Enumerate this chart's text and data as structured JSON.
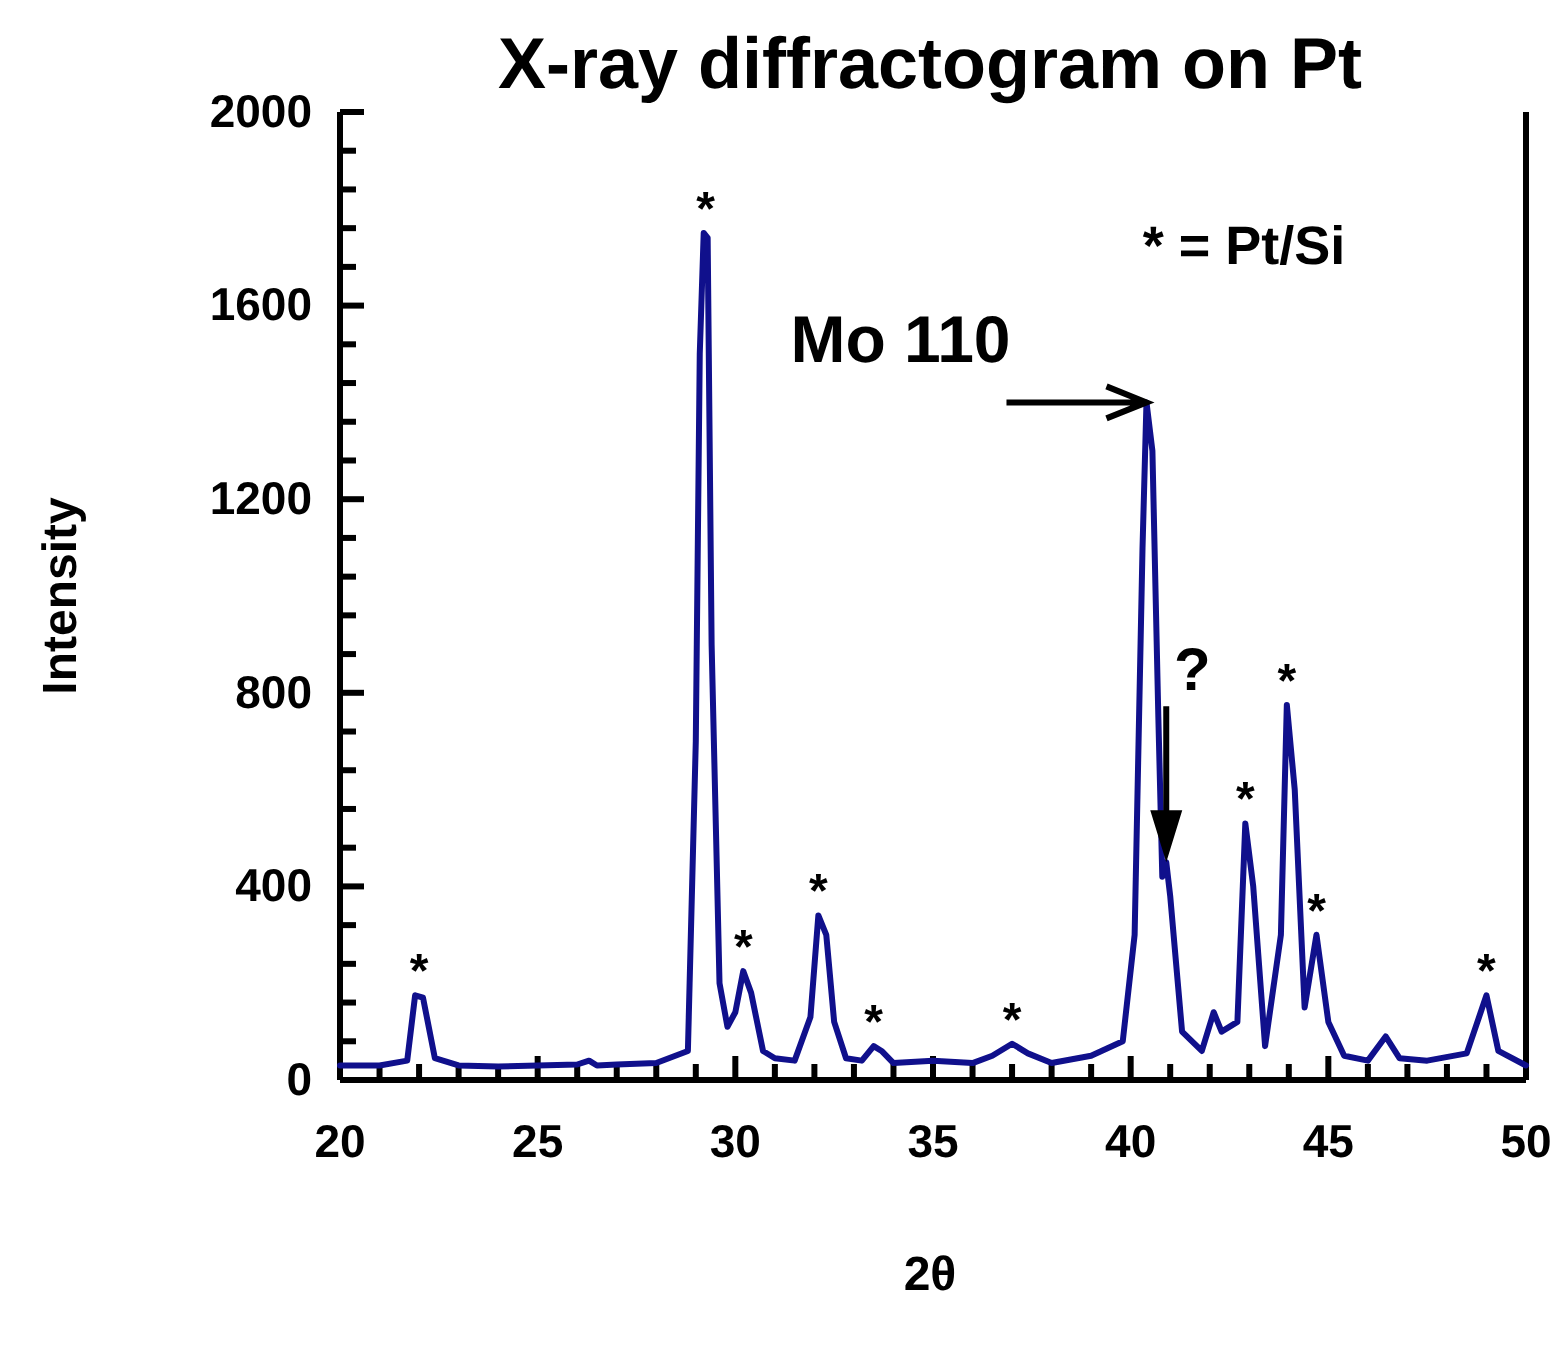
{
  "chart_data": {
    "type": "line",
    "title": "X-ray diffractogram on Pt",
    "xlabel": "2θ",
    "ylabel": "Intensity",
    "x": [
      20,
      21,
      21.7,
      21.9,
      22.1,
      22.4,
      23,
      24,
      25,
      26,
      26.3,
      26.5,
      27,
      28,
      28.8,
      29.0,
      29.1,
      29.2,
      29.3,
      29.4,
      29.6,
      29.8,
      30.0,
      30.2,
      30.4,
      30.7,
      31,
      31.5,
      31.9,
      32.1,
      32.3,
      32.5,
      32.8,
      33.2,
      33.5,
      33.7,
      34,
      35,
      36,
      36.5,
      37.0,
      37.4,
      38,
      39,
      39.8,
      40.1,
      40.3,
      40.4,
      40.55,
      40.7,
      40.8,
      40.9,
      41.0,
      41.3,
      41.8,
      42.1,
      42.3,
      42.7,
      42.9,
      43.1,
      43.4,
      43.8,
      43.95,
      44.15,
      44.4,
      44.7,
      45.0,
      45.4,
      46,
      46.45,
      46.8,
      47.5,
      48.5,
      49.0,
      49.3,
      50
    ],
    "series": [
      {
        "color": "#10108c",
        "values": [
          30,
          30,
          40,
          175,
          170,
          45,
          30,
          28,
          30,
          32,
          40,
          30,
          32,
          35,
          60,
          700,
          1500,
          1750,
          1740,
          900,
          200,
          110,
          140,
          225,
          180,
          60,
          45,
          40,
          130,
          340,
          300,
          120,
          45,
          40,
          70,
          60,
          35,
          40,
          35,
          50,
          75,
          55,
          35,
          50,
          80,
          300,
          1100,
          1400,
          1300,
          750,
          420,
          450,
          380,
          100,
          60,
          140,
          100,
          120,
          530,
          400,
          70,
          300,
          775,
          600,
          150,
          300,
          120,
          50,
          40,
          90,
          45,
          40,
          55,
          175,
          60,
          30
        ]
      }
    ],
    "xlim": [
      20,
      50
    ],
    "xticks": [
      20,
      {
        "value": 21,
        "label": null
      },
      {
        "value": 22,
        "label": null
      },
      {
        "value": 23,
        "label": null
      },
      {
        "value": 24,
        "label": null
      },
      25,
      {
        "value": 26,
        "label": null
      },
      {
        "value": 27,
        "label": null
      },
      {
        "value": 28,
        "label": null
      },
      {
        "value": 29,
        "label": null
      },
      30,
      {
        "value": 31,
        "label": null
      },
      {
        "value": 32,
        "label": null
      },
      {
        "value": 33,
        "label": null
      },
      {
        "value": 34,
        "label": null
      },
      35,
      {
        "value": 36,
        "label": null
      },
      {
        "value": 37,
        "label": null
      },
      {
        "value": 38,
        "label": null
      },
      {
        "value": 39,
        "label": null
      },
      40,
      {
        "value": 41,
        "label": null
      },
      {
        "value": 42,
        "label": null
      },
      {
        "value": 43,
        "label": null
      },
      {
        "value": 44,
        "label": null
      },
      45,
      {
        "value": 46,
        "label": null
      },
      {
        "value": 47,
        "label": null
      },
      {
        "value": 48,
        "label": null
      },
      {
        "value": 49,
        "label": null
      },
      50
    ],
    "ylim": [
      0,
      2000
    ],
    "yticks": [
      0,
      {
        "value": 80,
        "label": null
      },
      {
        "value": 160,
        "label": null
      },
      {
        "value": 240,
        "label": null
      },
      {
        "value": 320,
        "label": null
      },
      400,
      {
        "value": 480,
        "label": null
      },
      {
        "value": 560,
        "label": null
      },
      {
        "value": 640,
        "label": null
      },
      {
        "value": 720,
        "label": null
      },
      800,
      {
        "value": 880,
        "label": null
      },
      {
        "value": 960,
        "label": null
      },
      {
        "value": 1040,
        "label": null
      },
      {
        "value": 1120,
        "label": null
      },
      1200,
      {
        "value": 1280,
        "label": null
      },
      {
        "value": 1360,
        "label": null
      },
      {
        "value": 1440,
        "label": null
      },
      {
        "value": 1520,
        "label": null
      },
      1600,
      {
        "value": 1680,
        "label": null
      },
      {
        "value": 1760,
        "label": null
      },
      {
        "value": 1840,
        "label": null
      },
      {
        "value": 1920,
        "label": null
      },
      2000
    ],
    "grid": false,
    "marker": "none",
    "line_style": "solid",
    "annotations": [
      {
        "text": "*",
        "x": 22.0,
        "y": 175
      },
      {
        "text": "*",
        "x": 29.25,
        "y": 1750
      },
      {
        "text": "*",
        "x": 30.2,
        "y": 225
      },
      {
        "text": "*",
        "x": 32.1,
        "y": 340
      },
      {
        "text": "*",
        "x": 33.5,
        "y": 70
      },
      {
        "text": "*",
        "x": 37.0,
        "y": 75
      },
      {
        "text": "*",
        "x": 42.9,
        "y": 530
      },
      {
        "text": "*",
        "x": 43.95,
        "y": 775
      },
      {
        "text": "*",
        "x": 44.7,
        "y": 300
      },
      {
        "text": "*",
        "x": 49.0,
        "y": 175
      },
      {
        "text": "Mo 110",
        "x": 40.4,
        "y": 1400
      },
      {
        "text": "?",
        "x": 40.9,
        "y": 450
      },
      "* = Pt/Si"
    ]
  }
}
